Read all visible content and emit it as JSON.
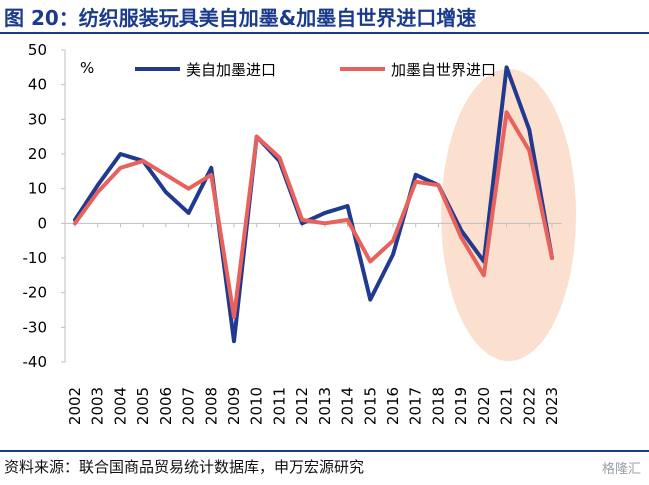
{
  "title": "图 20：纺织服装玩具美自加墨&加墨自世界进口增速",
  "source": "资料来源：联合国商品贸易统计数据库，申万宏源研究",
  "watermark": "格隆汇",
  "chart_data": {
    "type": "line",
    "ylabel": "%",
    "ylim": [
      -40,
      50
    ],
    "yticks": [
      50,
      40,
      30,
      20,
      10,
      0,
      -10,
      -20,
      -30,
      -40
    ],
    "categories": [
      "2002",
      "2003",
      "2004",
      "2005",
      "2006",
      "2007",
      "2008",
      "2009",
      "2010",
      "2011",
      "2012",
      "2013",
      "2014",
      "2015",
      "2016",
      "2017",
      "2018",
      "2019",
      "2020",
      "2021",
      "2022",
      "2023"
    ],
    "series": [
      {
        "name": "美自加墨进口",
        "color": "#1f3a8f",
        "values": [
          1,
          11,
          20,
          18,
          9,
          3,
          16,
          -34,
          25,
          18,
          0,
          3,
          5,
          -22,
          -9,
          14,
          11,
          -2,
          -11,
          45,
          27,
          -10
        ]
      },
      {
        "name": "加墨自世界进口",
        "color": "#e8615c",
        "values": [
          0,
          9,
          16,
          18,
          14,
          10,
          14,
          -27,
          25,
          19,
          1,
          0,
          1,
          -11,
          -5,
          12,
          11,
          -4,
          -15,
          32,
          21,
          -10
        ]
      }
    ],
    "highlight": {
      "from": "2019",
      "to": "2023",
      "color": "#fbe0cf"
    }
  }
}
